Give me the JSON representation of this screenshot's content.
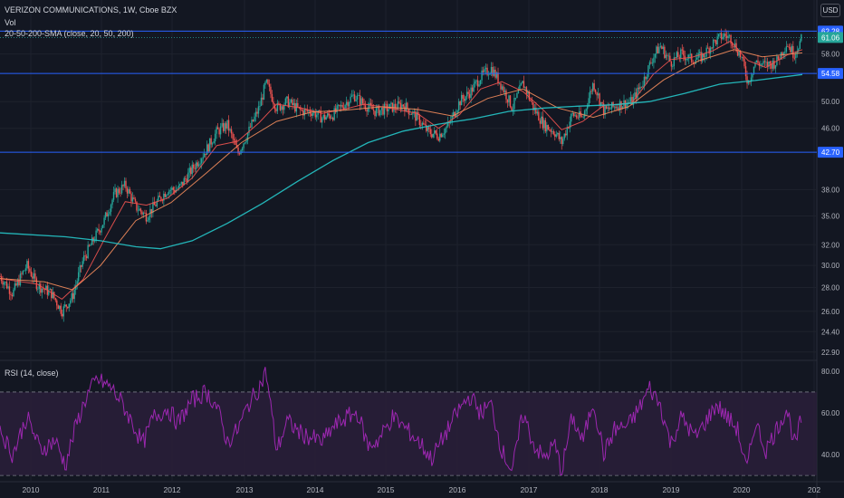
{
  "header": {
    "title": "VERIZON COMMUNICATIONS, 1W, Cboe BZX",
    "vol_label": "Vol",
    "sma_label": "20-50-200-SMA (close, 20, 50, 200)",
    "currency": "USD"
  },
  "colors": {
    "background": "#131722",
    "grid": "#1e222d",
    "up": "#26a69a",
    "down": "#ef5350",
    "sma20": "#ef5350",
    "sma50": "#f48c5c",
    "sma200": "#26c6c9",
    "hline": "#2962ff",
    "rsi": "#9c27b0",
    "rsi_band": "#2a1e3a"
  },
  "chart_data": [
    {
      "type": "candlestick",
      "title": "VERIZON COMMUNICATIONS, 1W, Cboe BZX",
      "x_ticks": [
        "2010",
        "2011",
        "2012",
        "2013",
        "2014",
        "2015",
        "2016",
        "2017",
        "2018",
        "2019",
        "2020",
        "202"
      ],
      "x_range": [
        2009.57,
        2020.97
      ],
      "y_ticks": [
        "62.28",
        "58.00",
        "54.58",
        "50.00",
        "46.00",
        "42.70",
        "38.00",
        "35.00",
        "32.00",
        "30.00",
        "28.00",
        "26.00",
        "24.40",
        "22.90"
      ],
      "y_scale": "log",
      "y_range": [
        22.5,
        64.5
      ],
      "last_price": 61.06,
      "price_markers": [
        {
          "label": "62.28",
          "value": 62.28
        },
        {
          "label": "61.06",
          "value": 61.06
        },
        {
          "label": "54.58",
          "value": 54.58
        },
        {
          "label": "42.70",
          "value": 42.7
        }
      ],
      "horizontal_lines": [
        62.28,
        54.58,
        42.7
      ],
      "dotted_line": 61.06,
      "price_path": [
        [
          2009.57,
          29.0
        ],
        [
          2009.75,
          27.5
        ],
        [
          2009.95,
          30.0
        ],
        [
          2010.1,
          28.2
        ],
        [
          2010.3,
          27.5
        ],
        [
          2010.45,
          26.0
        ],
        [
          2010.6,
          27.2
        ],
        [
          2010.75,
          30.5
        ],
        [
          2010.9,
          32.5
        ],
        [
          2011.05,
          34.5
        ],
        [
          2011.2,
          37.5
        ],
        [
          2011.35,
          38.5
        ],
        [
          2011.5,
          36.0
        ],
        [
          2011.65,
          35.0
        ],
        [
          2011.8,
          36.5
        ],
        [
          2011.95,
          38.0
        ],
        [
          2012.1,
          38.0
        ],
        [
          2012.3,
          40.5
        ],
        [
          2012.5,
          43.0
        ],
        [
          2012.65,
          45.5
        ],
        [
          2012.8,
          46.5
        ],
        [
          2012.95,
          42.5
        ],
        [
          2013.1,
          45.5
        ],
        [
          2013.25,
          49.0
        ],
        [
          2013.35,
          53.0
        ],
        [
          2013.5,
          49.0
        ],
        [
          2013.65,
          50.0
        ],
        [
          2013.85,
          48.5
        ],
        [
          2014.0,
          48.5
        ],
        [
          2014.15,
          47.5
        ],
        [
          2014.3,
          48.0
        ],
        [
          2014.45,
          49.5
        ],
        [
          2014.6,
          51.0
        ],
        [
          2014.75,
          49.5
        ],
        [
          2014.9,
          48.5
        ],
        [
          2015.1,
          49.0
        ],
        [
          2015.3,
          49.5
        ],
        [
          2015.5,
          47.5
        ],
        [
          2015.65,
          45.5
        ],
        [
          2015.8,
          45.0
        ],
        [
          2015.95,
          46.5
        ],
        [
          2016.1,
          50.0
        ],
        [
          2016.25,
          51.5
        ],
        [
          2016.4,
          54.0
        ],
        [
          2016.55,
          55.5
        ],
        [
          2016.7,
          52.5
        ],
        [
          2016.85,
          49.0
        ],
        [
          2017.0,
          53.0
        ],
        [
          2017.15,
          49.0
        ],
        [
          2017.3,
          46.5
        ],
        [
          2017.45,
          45.5
        ],
        [
          2017.55,
          44.0
        ],
        [
          2017.7,
          48.0
        ],
        [
          2017.85,
          47.5
        ],
        [
          2018.0,
          53.0
        ],
        [
          2018.15,
          48.5
        ],
        [
          2018.35,
          49.5
        ],
        [
          2018.55,
          50.0
        ],
        [
          2018.7,
          53.0
        ],
        [
          2018.85,
          57.5
        ],
        [
          2018.95,
          59.5
        ],
        [
          2019.1,
          56.5
        ],
        [
          2019.25,
          58.0
        ],
        [
          2019.4,
          57.0
        ],
        [
          2019.55,
          57.5
        ],
        [
          2019.7,
          60.0
        ],
        [
          2019.85,
          61.5
        ],
        [
          2019.95,
          61.0
        ],
        [
          2020.1,
          57.5
        ],
        [
          2020.2,
          53.0
        ],
        [
          2020.3,
          56.5
        ],
        [
          2020.45,
          56.0
        ],
        [
          2020.6,
          56.5
        ],
        [
          2020.75,
          60.0
        ],
        [
          2020.85,
          58.0
        ],
        [
          2020.97,
          61.06
        ]
      ],
      "sma_paths": [
        {
          "name": "SMA 20",
          "points": [
            [
              2009.57,
              28.8
            ],
            [
              2010.1,
              28.3
            ],
            [
              2010.45,
              27.0
            ],
            [
              2010.75,
              28.7
            ],
            [
              2011.05,
              32.5
            ],
            [
              2011.35,
              36.6
            ],
            [
              2011.65,
              36.2
            ],
            [
              2011.95,
              37.0
            ],
            [
              2012.3,
              39.4
            ],
            [
              2012.65,
              43.6
            ],
            [
              2012.95,
              44.2
            ],
            [
              2013.25,
              46.8
            ],
            [
              2013.5,
              49.6
            ],
            [
              2013.85,
              49.0
            ],
            [
              2014.15,
              48.2
            ],
            [
              2014.45,
              48.8
            ],
            [
              2014.75,
              49.6
            ],
            [
              2015.1,
              49.0
            ],
            [
              2015.5,
              48.2
            ],
            [
              2015.8,
              46.0
            ],
            [
              2016.1,
              48.0
            ],
            [
              2016.4,
              52.0
            ],
            [
              2016.7,
              53.2
            ],
            [
              2017.0,
              51.6
            ],
            [
              2017.3,
              48.6
            ],
            [
              2017.55,
              45.8
            ],
            [
              2017.85,
              47.0
            ],
            [
              2018.15,
              49.4
            ],
            [
              2018.55,
              49.8
            ],
            [
              2018.85,
              54.4
            ],
            [
              2019.1,
              57.0
            ],
            [
              2019.4,
              57.4
            ],
            [
              2019.7,
              58.6
            ],
            [
              2019.95,
              60.4
            ],
            [
              2020.2,
              56.8
            ],
            [
              2020.45,
              55.6
            ],
            [
              2020.75,
              57.8
            ],
            [
              2020.97,
              58.8
            ]
          ]
        },
        {
          "name": "SMA 50",
          "points": [
            [
              2009.57,
              28.8
            ],
            [
              2010.2,
              28.5
            ],
            [
              2010.6,
              27.8
            ],
            [
              2011.0,
              30.0
            ],
            [
              2011.5,
              34.5
            ],
            [
              2012.0,
              36.5
            ],
            [
              2012.5,
              40.0
            ],
            [
              2013.0,
              44.0
            ],
            [
              2013.5,
              47.0
            ],
            [
              2014.0,
              48.4
            ],
            [
              2014.5,
              48.7
            ],
            [
              2015.0,
              49.2
            ],
            [
              2015.5,
              48.8
            ],
            [
              2016.0,
              47.8
            ],
            [
              2016.5,
              50.5
            ],
            [
              2017.0,
              52.0
            ],
            [
              2017.5,
              49.0
            ],
            [
              2018.0,
              47.6
            ],
            [
              2018.5,
              49.2
            ],
            [
              2019.0,
              53.5
            ],
            [
              2019.5,
              56.8
            ],
            [
              2020.0,
              58.8
            ],
            [
              2020.4,
              57.5
            ],
            [
              2020.97,
              58.2
            ]
          ]
        },
        {
          "name": "SMA 200",
          "points": [
            [
              2009.57,
              33.2
            ],
            [
              2010.5,
              32.8
            ],
            [
              2011.0,
              32.4
            ],
            [
              2011.5,
              31.8
            ],
            [
              2011.85,
              31.6
            ],
            [
              2012.3,
              32.4
            ],
            [
              2012.8,
              34.2
            ],
            [
              2013.3,
              36.4
            ],
            [
              2013.8,
              39.0
            ],
            [
              2014.3,
              41.6
            ],
            [
              2014.8,
              44.0
            ],
            [
              2015.3,
              45.6
            ],
            [
              2015.8,
              46.6
            ],
            [
              2016.3,
              47.4
            ],
            [
              2016.8,
              48.5
            ],
            [
              2017.3,
              49.0
            ],
            [
              2017.8,
              49.3
            ],
            [
              2018.3,
              49.5
            ],
            [
              2018.8,
              50.0
            ],
            [
              2019.3,
              51.3
            ],
            [
              2019.8,
              52.8
            ],
            [
              2020.3,
              53.4
            ],
            [
              2020.97,
              54.4
            ]
          ]
        }
      ]
    },
    {
      "type": "line",
      "title": "RSI (14, close)",
      "y_ticks": [
        "80.00",
        "60.00",
        "40.00"
      ],
      "y_range": [
        27,
        83
      ],
      "bands": [
        70,
        30
      ],
      "points": [
        [
          2009.57,
          52
        ],
        [
          2009.75,
          40
        ],
        [
          2009.95,
          58
        ],
        [
          2010.15,
          42
        ],
        [
          2010.35,
          47
        ],
        [
          2010.5,
          35
        ],
        [
          2010.65,
          54
        ],
        [
          2010.8,
          68
        ],
        [
          2010.95,
          76
        ],
        [
          2011.15,
          72
        ],
        [
          2011.3,
          65
        ],
        [
          2011.45,
          55
        ],
        [
          2011.6,
          45
        ],
        [
          2011.75,
          58
        ],
        [
          2011.95,
          62
        ],
        [
          2012.1,
          55
        ],
        [
          2012.3,
          66
        ],
        [
          2012.5,
          70
        ],
        [
          2012.65,
          63
        ],
        [
          2012.8,
          46
        ],
        [
          2012.95,
          52
        ],
        [
          2013.1,
          64
        ],
        [
          2013.25,
          72
        ],
        [
          2013.35,
          80
        ],
        [
          2013.5,
          42
        ],
        [
          2013.65,
          56
        ],
        [
          2013.85,
          50
        ],
        [
          2014.0,
          48
        ],
        [
          2014.15,
          46
        ],
        [
          2014.3,
          53
        ],
        [
          2014.5,
          58
        ],
        [
          2014.65,
          60
        ],
        [
          2014.8,
          44
        ],
        [
          2014.95,
          47
        ],
        [
          2015.15,
          58
        ],
        [
          2015.35,
          52
        ],
        [
          2015.55,
          45
        ],
        [
          2015.7,
          38
        ],
        [
          2015.9,
          50
        ],
        [
          2016.1,
          62
        ],
        [
          2016.25,
          68
        ],
        [
          2016.4,
          60
        ],
        [
          2016.55,
          64
        ],
        [
          2016.7,
          42
        ],
        [
          2016.85,
          32
        ],
        [
          2017.0,
          60
        ],
        [
          2017.15,
          45
        ],
        [
          2017.3,
          38
        ],
        [
          2017.45,
          45
        ],
        [
          2017.55,
          32
        ],
        [
          2017.7,
          58
        ],
        [
          2017.85,
          46
        ],
        [
          2018.0,
          66
        ],
        [
          2018.15,
          40
        ],
        [
          2018.3,
          52
        ],
        [
          2018.5,
          54
        ],
        [
          2018.65,
          62
        ],
        [
          2018.8,
          72
        ],
        [
          2018.95,
          64
        ],
        [
          2019.1,
          45
        ],
        [
          2019.25,
          58
        ],
        [
          2019.45,
          48
        ],
        [
          2019.6,
          56
        ],
        [
          2019.75,
          64
        ],
        [
          2019.9,
          58
        ],
        [
          2020.05,
          52
        ],
        [
          2020.18,
          32
        ],
        [
          2020.3,
          56
        ],
        [
          2020.45,
          42
        ],
        [
          2020.6,
          52
        ],
        [
          2020.75,
          62
        ],
        [
          2020.87,
          44
        ],
        [
          2020.97,
          60
        ]
      ]
    }
  ]
}
